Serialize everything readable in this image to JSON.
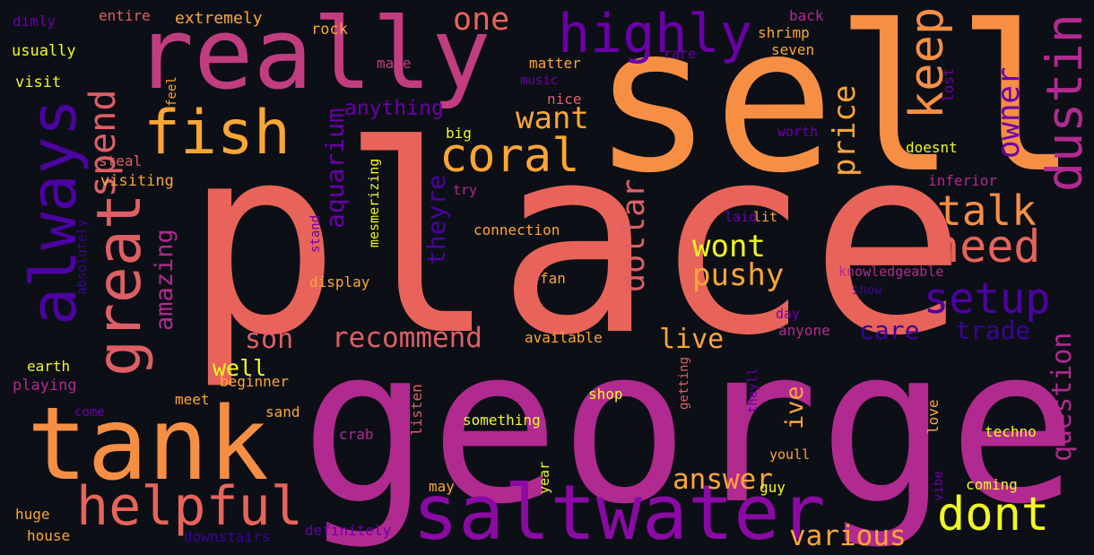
{
  "background": "#0d0f16",
  "palette": {
    "p1": "#e8645a",
    "p2": "#f68f44",
    "p3": "#c23d80",
    "p4": "#8b0aa5",
    "p5": "#4b03a1",
    "p6": "#f0f921",
    "p7": "#fca636",
    "p8": "#6a00a8",
    "p9": "#de5f65",
    "p10": "#b12a90",
    "p11": "#3a049a"
  },
  "words": [
    {
      "text": "place",
      "color": "p1"
    },
    {
      "text": "george",
      "color": "p10"
    },
    {
      "text": "sell",
      "color": "p2"
    },
    {
      "text": "really",
      "color": "p3"
    },
    {
      "text": "tank",
      "color": "p2"
    },
    {
      "text": "saltwater",
      "color": "p4"
    },
    {
      "text": "fish",
      "color": "p7"
    },
    {
      "text": "great",
      "color": "p9"
    },
    {
      "text": "always",
      "color": "p5"
    },
    {
      "text": "highly",
      "color": "p8"
    },
    {
      "text": "dustin",
      "color": "p10"
    },
    {
      "text": "keep",
      "color": "p2"
    },
    {
      "text": "helpful",
      "color": "p1"
    },
    {
      "text": "coral",
      "color": "p7"
    },
    {
      "text": "dont",
      "color": "p6"
    },
    {
      "text": "need",
      "color": "p1"
    },
    {
      "text": "setup",
      "color": "p5"
    },
    {
      "text": "talk",
      "color": "p2"
    },
    {
      "text": "spend",
      "color": "p9"
    },
    {
      "text": "one",
      "color": "p1"
    },
    {
      "text": "want",
      "color": "p7"
    },
    {
      "text": "price",
      "color": "p7"
    },
    {
      "text": "owner",
      "color": "p8"
    },
    {
      "text": "dollar",
      "color": "p9"
    },
    {
      "text": "wont",
      "color": "p6"
    },
    {
      "text": "pushy",
      "color": "p7"
    },
    {
      "text": "aquarium",
      "color": "p8"
    },
    {
      "text": "theyre",
      "color": "p5"
    },
    {
      "text": "amazing",
      "color": "p10"
    },
    {
      "text": "recommend",
      "color": "p9"
    },
    {
      "text": "son",
      "color": "p9"
    },
    {
      "text": "care",
      "color": "p11"
    },
    {
      "text": "trade",
      "color": "p11"
    },
    {
      "text": "live",
      "color": "p7"
    },
    {
      "text": "question",
      "color": "p10"
    },
    {
      "text": "answer",
      "color": "p7"
    },
    {
      "text": "various",
      "color": "p7"
    },
    {
      "text": "ive",
      "color": "p7"
    },
    {
      "text": "well",
      "color": "p6"
    },
    {
      "text": "anything",
      "color": "p8"
    },
    {
      "text": "extremely",
      "color": "p7"
    },
    {
      "text": "entire",
      "color": "p9"
    },
    {
      "text": "dimly",
      "color": "p8"
    },
    {
      "text": "usually",
      "color": "p6"
    },
    {
      "text": "visit",
      "color": "p6"
    },
    {
      "text": "rock",
      "color": "p7"
    },
    {
      "text": "make",
      "color": "p3"
    },
    {
      "text": "matter",
      "color": "p7"
    },
    {
      "text": "music",
      "color": "p8"
    },
    {
      "text": "rare",
      "color": "p8"
    },
    {
      "text": "back",
      "color": "p10"
    },
    {
      "text": "shrimp",
      "color": "p7"
    },
    {
      "text": "seven",
      "color": "p7"
    },
    {
      "text": "lost",
      "color": "p8"
    },
    {
      "text": "feel",
      "color": "p7"
    },
    {
      "text": "nice",
      "color": "p9"
    },
    {
      "text": "big",
      "color": "p6"
    },
    {
      "text": "worth",
      "color": "p8"
    },
    {
      "text": "doesnt",
      "color": "p6"
    },
    {
      "text": "steal",
      "color": "p9"
    },
    {
      "text": "visiting",
      "color": "p7"
    },
    {
      "text": "try",
      "color": "p10"
    },
    {
      "text": "inferior",
      "color": "p10"
    },
    {
      "text": "mesmerizing",
      "color": "p6"
    },
    {
      "text": "stand",
      "color": "p8"
    },
    {
      "text": "connection",
      "color": "p7"
    },
    {
      "text": "laid",
      "color": "p8"
    },
    {
      "text": "lit",
      "color": "p7"
    },
    {
      "text": "absolutely",
      "color": "p11"
    },
    {
      "text": "display",
      "color": "p7"
    },
    {
      "text": "fan",
      "color": "p7"
    },
    {
      "text": "knowledgeable",
      "color": "p10"
    },
    {
      "text": "show",
      "color": "p11"
    },
    {
      "text": "day",
      "color": "p8"
    },
    {
      "text": "anyone",
      "color": "p10"
    },
    {
      "text": "available",
      "color": "p7"
    },
    {
      "text": "earth",
      "color": "p6"
    },
    {
      "text": "playing",
      "color": "p10"
    },
    {
      "text": "beginner",
      "color": "p7"
    },
    {
      "text": "meet",
      "color": "p7"
    },
    {
      "text": "come",
      "color": "p8"
    },
    {
      "text": "sand",
      "color": "p7"
    },
    {
      "text": "getting",
      "color": "p9"
    },
    {
      "text": "shop",
      "color": "p6"
    },
    {
      "text": "listen",
      "color": "p9"
    },
    {
      "text": "theyll",
      "color": "p8"
    },
    {
      "text": "love",
      "color": "p7"
    },
    {
      "text": "something",
      "color": "p6"
    },
    {
      "text": "techno",
      "color": "p6"
    },
    {
      "text": "crab",
      "color": "p10"
    },
    {
      "text": "youll",
      "color": "p7"
    },
    {
      "text": "vibe",
      "color": "p8"
    },
    {
      "text": "year",
      "color": "p6"
    },
    {
      "text": "guy",
      "color": "p6"
    },
    {
      "text": "coming",
      "color": "p6"
    },
    {
      "text": "may",
      "color": "p7"
    },
    {
      "text": "huge",
      "color": "p7"
    },
    {
      "text": "house",
      "color": "p7"
    },
    {
      "text": "downstairs",
      "color": "p11"
    },
    {
      "text": "definitely",
      "color": "p8"
    }
  ]
}
